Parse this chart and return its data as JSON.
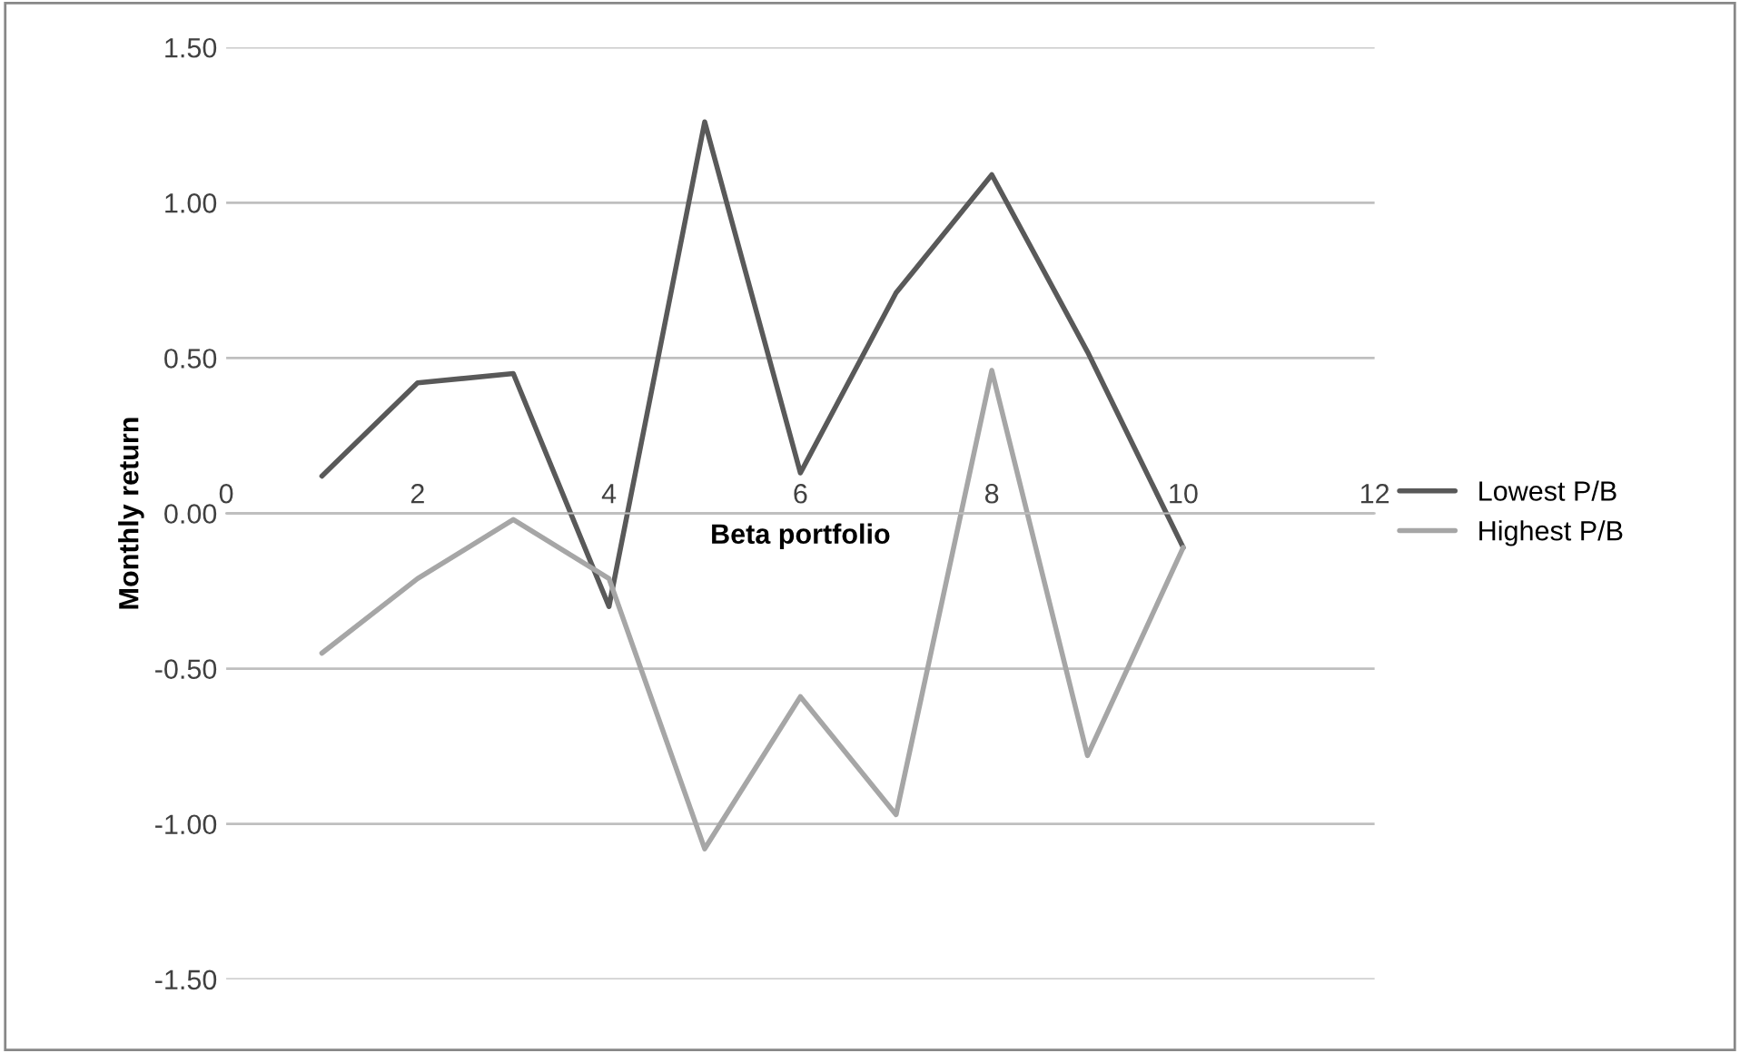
{
  "chart_data": {
    "type": "line",
    "xlabel": "Beta portfolio",
    "ylabel": "Monthly return",
    "x": [
      1,
      2,
      3,
      4,
      5,
      6,
      7,
      8,
      9,
      10
    ],
    "series": [
      {
        "name": "Lowest P/B",
        "color": "#595959",
        "values": [
          0.12,
          0.42,
          0.45,
          -0.3,
          1.26,
          0.13,
          0.71,
          1.09,
          0.52,
          -0.11
        ]
      },
      {
        "name": "Highest P/B",
        "color": "#a6a6a6",
        "values": [
          -0.45,
          -0.21,
          -0.02,
          -0.21,
          -1.08,
          -0.59,
          -0.97,
          0.46,
          -0.78,
          -0.11
        ]
      }
    ],
    "xlim": [
      0,
      12
    ],
    "xticks": [
      0,
      2,
      4,
      6,
      8,
      10,
      12
    ],
    "ylim": [
      -1.5,
      1.5
    ],
    "yticks": [
      {
        "value": -1.5,
        "label": "-1.50"
      },
      {
        "value": -1.0,
        "label": "-1.00"
      },
      {
        "value": -0.5,
        "label": "-0.50"
      },
      {
        "value": 0,
        "label": "0.00"
      },
      {
        "value": 0.5,
        "label": "0.50"
      },
      {
        "value": 1.0,
        "label": "1.00"
      },
      {
        "value": 1.5,
        "label": "1.50"
      }
    ],
    "grid": "y",
    "legend": "right",
    "marker": "none",
    "line_style": "solid"
  }
}
